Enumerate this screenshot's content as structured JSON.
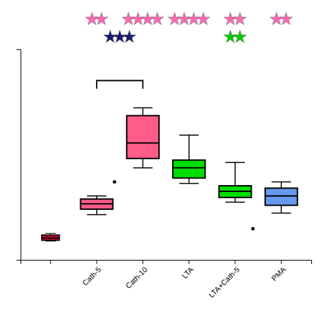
{
  "chart_data": {
    "type": "box",
    "categories": [
      null,
      "Cath-5",
      "Cath-10",
      "LTA",
      "LTA+Cath-5",
      "PMA"
    ],
    "boxes": [
      {
        "q1": 15,
        "median": 18,
        "q3": 22,
        "whisker_low": 14,
        "whisker_high": 24,
        "color": "#AA1133"
      },
      {
        "q1": 55,
        "median": 62,
        "q3": 68,
        "whisker_low": 48,
        "whisker_high": 72,
        "color": "#FF5C8A",
        "points": [
          90
        ],
        "stars": {
          "count": 2,
          "color": "#FF69B4"
        }
      },
      {
        "q1": 120,
        "median": 140,
        "q3": 175,
        "whisker_low": 108,
        "whisker_high": 185,
        "color": "#FF5C8A",
        "stars": {
          "count": 4,
          "color": "#FF69B4"
        }
      },
      {
        "q1": 95,
        "median": 108,
        "q3": 118,
        "whisker_low": 88,
        "whisker_high": 150,
        "color": "#00DD00",
        "stars": {
          "count": 4,
          "color": "#FF69B4"
        }
      },
      {
        "q1": 70,
        "median": 78,
        "q3": 85,
        "whisker_low": 64,
        "whisker_high": 115,
        "color": "#00DD00",
        "points": [
          30
        ],
        "stars": {
          "count": 2,
          "color": "#FF69B4"
        },
        "stars_secondary": {
          "count": 2,
          "color": "#00CC00"
        }
      },
      {
        "q1": 60,
        "median": 72,
        "q3": 82,
        "whisker_low": 50,
        "whisker_high": 90,
        "color": "#6699EE",
        "stars": {
          "count": 2,
          "color": "#FF69B4"
        }
      }
    ],
    "bracket": {
      "from": "Cath-5",
      "to": "Cath-10",
      "y": 220,
      "stars": {
        "count": 3,
        "color": "#191970"
      }
    },
    "ylim": [
      -10,
      260
    ],
    "yticks": [],
    "tick_labels": "x",
    "grid": false
  }
}
